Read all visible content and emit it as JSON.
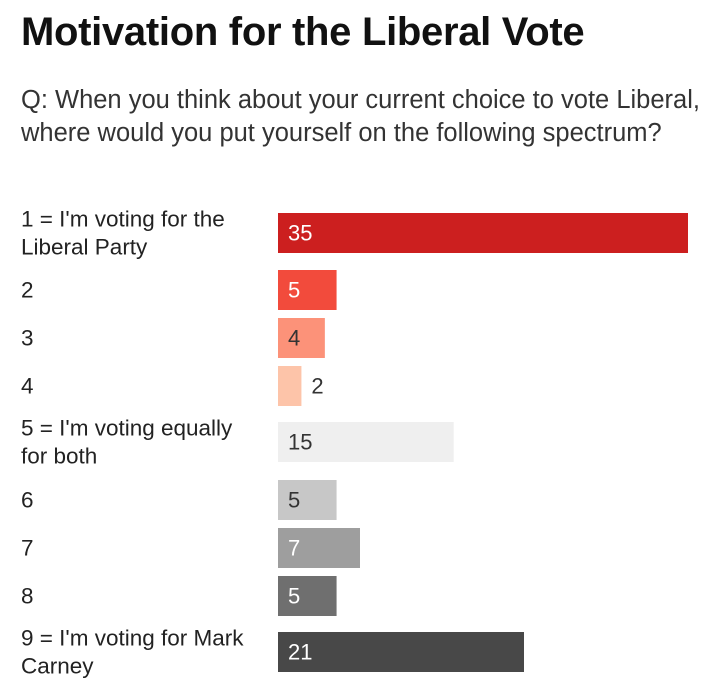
{
  "title": "Motivation for the Liberal Vote",
  "subtitle": "Q: When you think about your current choice to vote Liberal, where would you put yourself on the following spectrum?",
  "chart_data": {
    "type": "bar",
    "orientation": "horizontal",
    "categories": [
      [
        "1 = I'm voting for the",
        "Liberal Party"
      ],
      [
        "2"
      ],
      [
        "3"
      ],
      [
        "4"
      ],
      [
        "5 = I'm voting equally",
        "for both"
      ],
      [
        "6"
      ],
      [
        "7"
      ],
      [
        "8"
      ],
      [
        "9 = I'm voting for Mark",
        "Carney"
      ]
    ],
    "values": [
      35,
      5,
      4,
      2,
      15,
      5,
      7,
      5,
      21
    ],
    "colors": [
      "#cc1f1f",
      "#f24b3c",
      "#fc9279",
      "#fdc4a9",
      "#efefef",
      "#c7c7c7",
      "#9e9e9e",
      "#6f6f6f",
      "#484848"
    ],
    "label_colors": [
      "#ffffff",
      "#ffffff",
      "#333333",
      "#333333",
      "#333333",
      "#333333",
      "#ffffff",
      "#ffffff",
      "#ffffff"
    ],
    "xlim": [
      0,
      35
    ]
  }
}
